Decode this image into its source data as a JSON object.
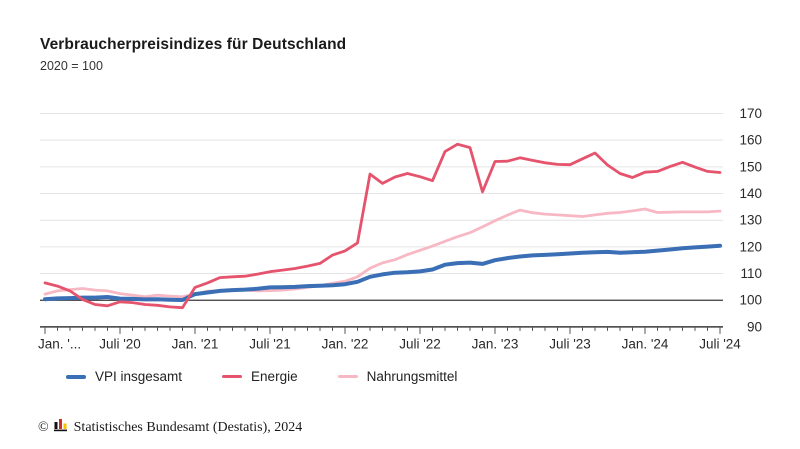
{
  "header": {
    "title": "Verbraucherpreisindizes für Deutschland",
    "subtitle": "2020 = 100"
  },
  "chart_data": {
    "type": "line",
    "title": "Verbraucherpreisindizes für Deutschland",
    "subtitle": "2020 = 100",
    "x_range_note": "monthly values from Jan 2020 to Jul 2024",
    "x_tick_labels": [
      "Jan. '...",
      "Juli '20",
      "Jan. '21",
      "Juli '21",
      "Jan. '22",
      "Juli '22",
      "Jan. '23",
      "Juli '23",
      "Jan. '24",
      "Juli '24"
    ],
    "y_ticks": [
      90,
      100,
      110,
      120,
      130,
      140,
      150,
      160,
      170
    ],
    "ylim": [
      90,
      170
    ],
    "baseline": 100,
    "grid": "on",
    "legend_position": "bottom",
    "colors": {
      "grid": "#e4e4e4",
      "baseline": "#3a3a3a",
      "axis": "#3a3a3a",
      "tick_text": "#2a2a2a"
    },
    "series": [
      {
        "name": "VPI insgesamt",
        "color": "#3a6eb5",
        "values": [
          100.4,
          100.7,
          100.8,
          101.0,
          101.0,
          101.2,
          100.6,
          100.5,
          100.3,
          100.4,
          100.2,
          100.1,
          102.3,
          102.9,
          103.5,
          103.8,
          104.0,
          104.3,
          104.8,
          104.9,
          105.0,
          105.3,
          105.4,
          105.6,
          106.0,
          106.9,
          108.8,
          109.7,
          110.3,
          110.5,
          110.8,
          111.5,
          113.3,
          113.9,
          114.1,
          113.6,
          115.0,
          115.8,
          116.4,
          116.8,
          117.0,
          117.2,
          117.5,
          117.8,
          118.0,
          118.1,
          117.8,
          118.0,
          118.2,
          118.6,
          119.0,
          119.5,
          119.8,
          120.1,
          120.4
        ]
      },
      {
        "name": "Energie",
        "color": "#e5536d",
        "values": [
          106.5,
          105.3,
          103.5,
          100.3,
          98.4,
          97.9,
          99.4,
          99.1,
          98.4,
          98.1,
          97.5,
          97.2,
          104.8,
          106.5,
          108.5,
          108.8,
          109.0,
          109.8,
          110.7,
          111.3,
          111.9,
          112.8,
          113.8,
          116.9,
          118.5,
          121.5,
          147.3,
          143.8,
          146.2,
          147.5,
          146.3,
          144.8,
          155.7,
          158.5,
          157.2,
          140.6,
          152.0,
          152.1,
          153.4,
          152.4,
          151.5,
          150.9,
          150.8,
          153.0,
          155.2,
          150.7,
          147.5,
          146.0,
          148.0,
          148.3,
          150.1,
          151.7,
          149.9,
          148.3,
          147.9
        ]
      },
      {
        "name": "Nahrungsmittel",
        "color": "#f7b8c4",
        "values": [
          102.3,
          103.5,
          104.0,
          104.4,
          103.8,
          103.5,
          102.5,
          101.9,
          101.3,
          101.9,
          101.5,
          101.3,
          102.3,
          103.4,
          103.5,
          103.8,
          103.8,
          103.5,
          103.6,
          103.8,
          104.2,
          104.8,
          105.4,
          106.4,
          107.1,
          108.8,
          112.0,
          114.0,
          115.2,
          117.1,
          118.7,
          120.3,
          122.1,
          123.8,
          125.3,
          127.5,
          129.8,
          131.9,
          133.8,
          132.8,
          132.3,
          132.0,
          131.7,
          131.4,
          132.0,
          132.6,
          132.9,
          133.5,
          134.2,
          132.9,
          133.0,
          133.1,
          133.1,
          133.1,
          133.4
        ]
      }
    ]
  },
  "footer": {
    "copyright": "©",
    "text": "Statistisches Bundesamt (Destatis), 2024",
    "logo_colors": {
      "bar1": "#111111",
      "bar2": "#d42a2a",
      "bar3": "#f7c200"
    }
  }
}
